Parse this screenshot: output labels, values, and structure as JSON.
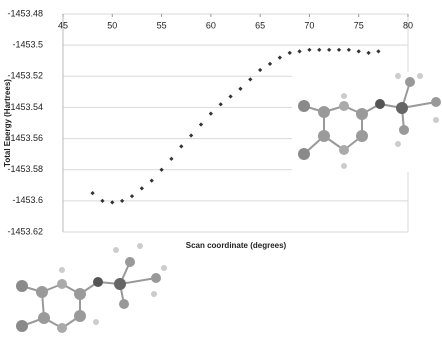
{
  "chart_data": {
    "type": "scatter",
    "x_label": "Scan coordinate (degrees)",
    "y_label": "Total Energy (Hartrees)",
    "x": [
      48,
      49,
      50,
      51,
      52,
      53,
      54,
      55,
      56,
      57,
      58,
      59,
      60,
      61,
      62,
      63,
      64,
      65,
      66,
      67,
      68,
      69,
      70,
      71,
      72,
      73,
      74,
      75,
      76,
      77
    ],
    "values": [
      -1453.595,
      -1453.6,
      -1453.601,
      -1453.6,
      -1453.597,
      -1453.592,
      -1453.587,
      -1453.58,
      -1453.573,
      -1453.565,
      -1453.558,
      -1453.551,
      -1453.544,
      -1453.538,
      -1453.533,
      -1453.528,
      -1453.522,
      -1453.516,
      -1453.512,
      -1453.508,
      -1453.505,
      -1453.504,
      -1453.503,
      -1453.503,
      -1453.503,
      -1453.503,
      -1453.503,
      -1453.504,
      -1453.505,
      -1453.504
    ],
    "color": "#333333",
    "xlim": [
      45,
      80
    ],
    "xticks": [
      45,
      50,
      55,
      60,
      65,
      70,
      75,
      80
    ],
    "ylim": [
      -1453.62,
      -1453.48
    ],
    "yticks": [
      -1453.48,
      -1453.5,
      -1453.52,
      -1453.54,
      -1453.56,
      -1453.58,
      -1453.6,
      -1453.62
    ],
    "grid": true
  }
}
